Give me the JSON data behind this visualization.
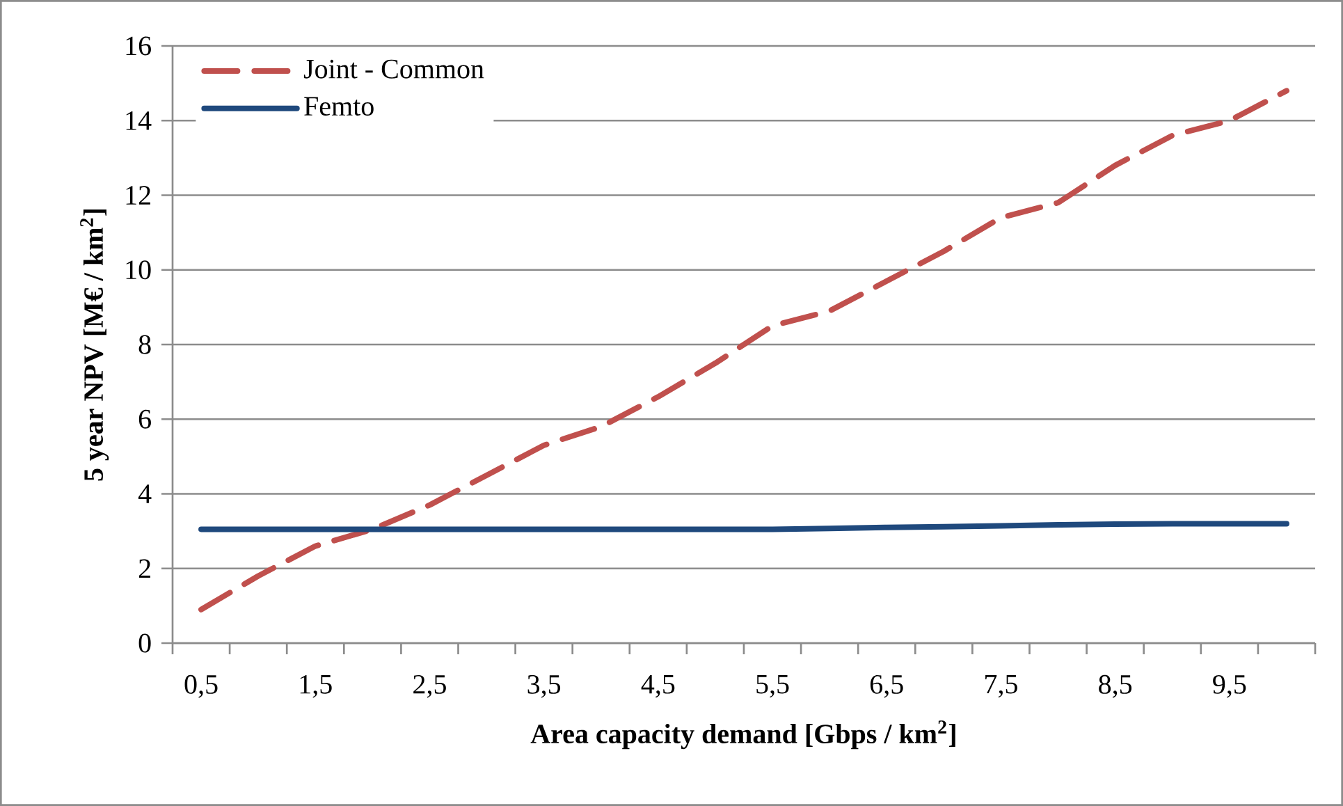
{
  "chart_data": {
    "type": "line",
    "xlabel": "Area capacity demand [Gbps / km$^{2}$]",
    "ylabel": "5 year NPV [M€ / km$^{2}$]",
    "categories": [
      "0,5",
      null,
      "1,5",
      null,
      "2,5",
      null,
      "3,5",
      null,
      "4,5",
      null,
      "5,5",
      null,
      "6,5",
      null,
      "7,5",
      null,
      "8,5",
      null,
      "9,5",
      null
    ],
    "series": [
      {
        "name": "Joint - Common",
        "color": "#c0504d",
        "line_style": "dashed",
        "values": [
          0.9,
          1.8,
          2.6,
          3.05,
          3.7,
          4.5,
          5.3,
          5.8,
          6.6,
          7.5,
          8.5,
          8.9,
          9.7,
          10.5,
          11.4,
          11.8,
          12.8,
          13.6,
          14.0,
          14.8
        ]
      },
      {
        "name": "Femto",
        "color": "#1f497d",
        "line_style": "solid",
        "values": [
          3.05,
          3.05,
          3.05,
          3.05,
          3.05,
          3.05,
          3.05,
          3.05,
          3.05,
          3.05,
          3.05,
          3.07,
          3.1,
          3.12,
          3.14,
          3.17,
          3.19,
          3.2,
          3.2,
          3.2
        ]
      }
    ],
    "ylim": [
      0,
      16
    ],
    "yticks": [
      0,
      2,
      4,
      6,
      8,
      10,
      12,
      14,
      16
    ],
    "grid": "y",
    "legend": "top left",
    "marker": "none"
  }
}
